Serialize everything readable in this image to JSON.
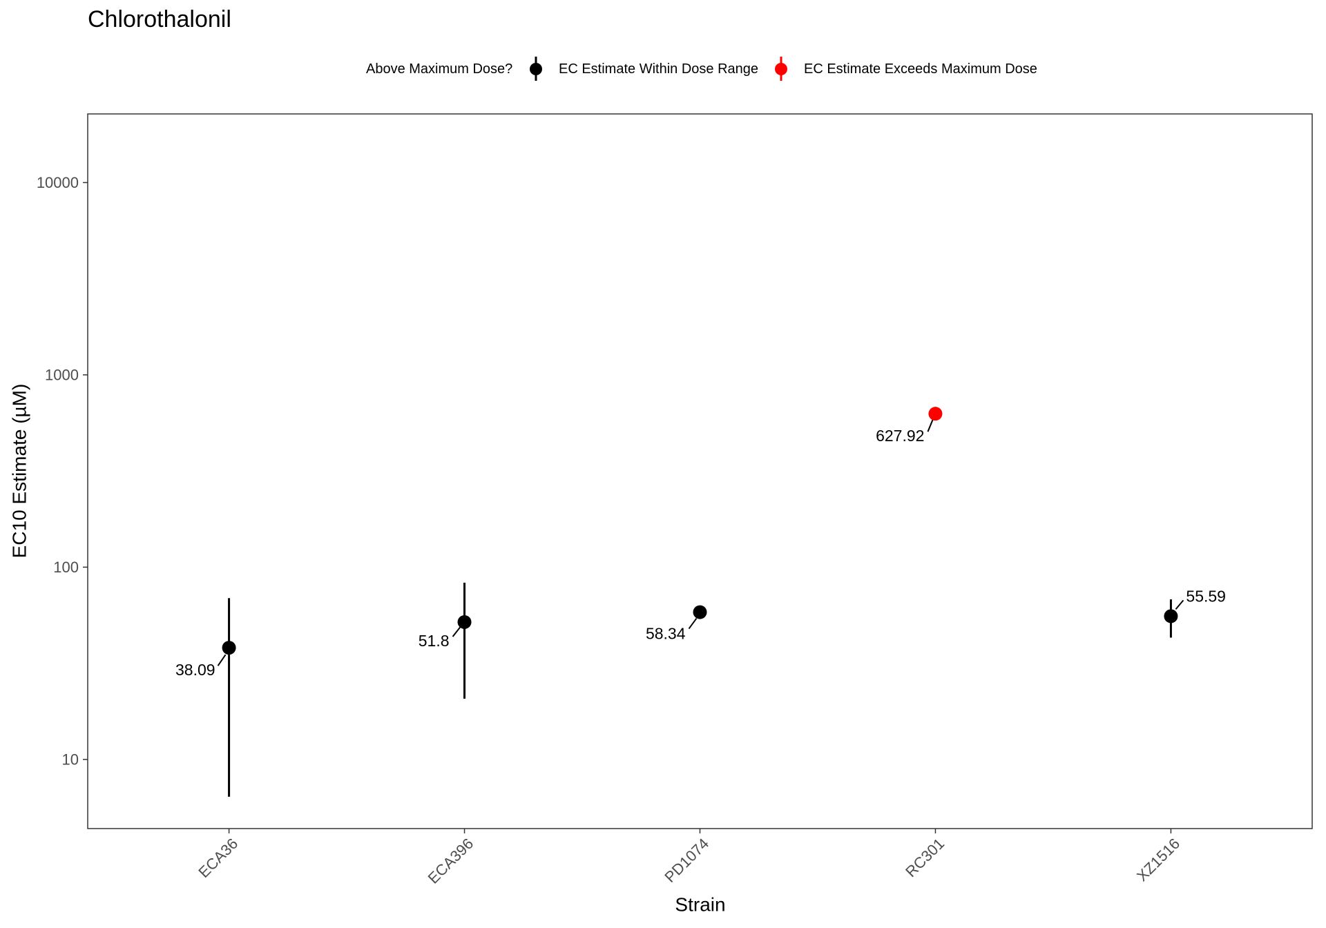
{
  "chart_data": {
    "type": "scatter",
    "title": "Chlorothalonil",
    "xlabel": "Strain",
    "ylabel": "EC10 Estimate (µM)",
    "categories": [
      "ECA36",
      "ECA396",
      "PD1074",
      "RC301",
      "XZ1516"
    ],
    "y_scale": "log10",
    "ylim": [
      4.37,
      22750
    ],
    "yticks": [
      10,
      100,
      1000,
      10000
    ],
    "ytick_labels": [
      "10",
      "100",
      "1000",
      "10000"
    ],
    "grid": false,
    "legend": {
      "title": "Above Maximum Dose?",
      "position": "top",
      "entries": [
        {
          "label": "EC Estimate Within Dose Range",
          "color": "#000000"
        },
        {
          "label": "EC Estimate Exceeds Maximum Dose",
          "color": "#FF0000"
        }
      ]
    },
    "points": [
      {
        "category": "ECA36",
        "value": 38.09,
        "ci_lower": 6.4,
        "ci_upper": 69,
        "exceeds_max_dose": false
      },
      {
        "category": "ECA396",
        "value": 51.8,
        "ci_lower": 20.7,
        "ci_upper": 83,
        "exceeds_max_dose": false
      },
      {
        "category": "PD1074",
        "value": 58.34,
        "ci_lower": null,
        "ci_upper": null,
        "exceeds_max_dose": false
      },
      {
        "category": "RC301",
        "value": 627.92,
        "ci_lower": null,
        "ci_upper": null,
        "exceeds_max_dose": true
      },
      {
        "category": "XZ1516",
        "value": 55.59,
        "ci_lower": 43,
        "ci_upper": 68,
        "exceeds_max_dose": false
      }
    ]
  }
}
